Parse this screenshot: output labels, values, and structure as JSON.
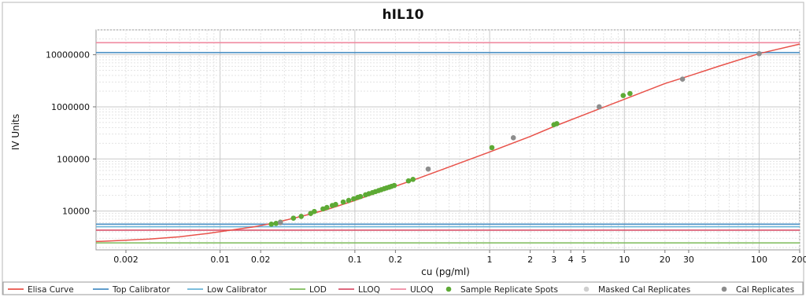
{
  "chart_data": {
    "type": "scatter",
    "title": "hIL10",
    "xlabel": "cu (pg/ml)",
    "ylabel": "IV Units",
    "x_scale": "log",
    "y_scale": "log",
    "xlim": [
      0.0012,
      200
    ],
    "ylim": [
      1800,
      30000000
    ],
    "x_ticks": [
      {
        "value": 0.002,
        "label": "0.002"
      },
      {
        "value": 0.01,
        "label": "0.01"
      },
      {
        "value": 0.02,
        "label": "0.02"
      },
      {
        "value": 0.1,
        "label": "0.1"
      },
      {
        "value": 0.2,
        "label": "0.2"
      },
      {
        "value": 1,
        "label": "1"
      },
      {
        "value": 2,
        "label": "2"
      },
      {
        "value": 3,
        "label": "3"
      },
      {
        "value": 4,
        "label": "4"
      },
      {
        "value": 5,
        "label": "5"
      },
      {
        "value": 10,
        "label": "10"
      },
      {
        "value": 20,
        "label": "20"
      },
      {
        "value": 30,
        "label": "30"
      },
      {
        "value": 100,
        "label": "100"
      },
      {
        "value": 200,
        "label": "200"
      }
    ],
    "y_ticks": [
      {
        "value": 10000,
        "label": "10000"
      },
      {
        "value": 100000,
        "label": "100000"
      },
      {
        "value": 1000000,
        "label": "1000000"
      },
      {
        "value": 10000000,
        "label": "10000000"
      }
    ],
    "grid": true,
    "legend_position": "bottom",
    "series": [
      {
        "name": "Elisa Curve",
        "kind": "curve",
        "color": "#e8524a",
        "x": [
          0.0012,
          0.002,
          0.003,
          0.005,
          0.008,
          0.012,
          0.018,
          0.025,
          0.04,
          0.06,
          0.1,
          0.15,
          0.2,
          0.3,
          0.5,
          1,
          2,
          3,
          5,
          10,
          20,
          30,
          50,
          100,
          200
        ],
        "y": [
          2600,
          2750,
          2900,
          3200,
          3700,
          4300,
          5000,
          5900,
          7900,
          10400,
          16000,
          23000,
          30000,
          43000,
          70000,
          136000,
          270000,
          420000,
          700000,
          1400000,
          2800000,
          3900000,
          6000000,
          10500000,
          16000000
        ]
      },
      {
        "name": "Top Calibrator",
        "kind": "hline",
        "color": "#4a8fc4",
        "y": [
          11000000,
          5600
        ]
      },
      {
        "name": "Low Calibrator",
        "kind": "hline",
        "color": "#6ab4d8",
        "y": [
          5000
        ]
      },
      {
        "name": "LOD",
        "kind": "hline",
        "color": "#7dbb5a",
        "y": [
          2450
        ]
      },
      {
        "name": "LLOQ",
        "kind": "hline",
        "color": "#d9536b",
        "y": [
          4300
        ]
      },
      {
        "name": "ULOQ",
        "kind": "hline",
        "color": "#f08aa0",
        "y": [
          17000000
        ]
      },
      {
        "name": "Sample Replicate Spots",
        "kind": "points",
        "color": "#5daa35",
        "x": [
          0.024,
          0.026,
          0.028,
          0.035,
          0.04,
          0.047,
          0.05,
          0.058,
          0.062,
          0.068,
          0.072,
          0.082,
          0.09,
          0.098,
          0.105,
          0.11,
          0.12,
          0.127,
          0.135,
          0.142,
          0.15,
          0.157,
          0.165,
          0.172,
          0.18,
          0.187,
          0.196,
          0.25,
          0.27,
          1.04,
          3,
          3.15,
          9.8,
          11
        ],
        "y": [
          5600,
          5800,
          6100,
          7300,
          7900,
          9000,
          9800,
          11000,
          11700,
          12800,
          13400,
          14900,
          16000,
          17200,
          18300,
          19000,
          20500,
          21500,
          22600,
          23600,
          24700,
          25700,
          26800,
          27800,
          28800,
          29800,
          31000,
          38000,
          40500,
          165000,
          455000,
          475000,
          1650000,
          1800000
        ]
      },
      {
        "name": "Masked Cal Replicates",
        "kind": "points",
        "color": "#cfcfcf",
        "x": [],
        "y": []
      },
      {
        "name": "Cal Replicates",
        "kind": "points",
        "color": "#8d8d8d",
        "x": [
          0.028,
          0.35,
          1.5,
          6.5,
          27,
          100
        ],
        "y": [
          6000,
          64000,
          255000,
          1000000,
          3400000,
          10500000
        ]
      }
    ]
  }
}
